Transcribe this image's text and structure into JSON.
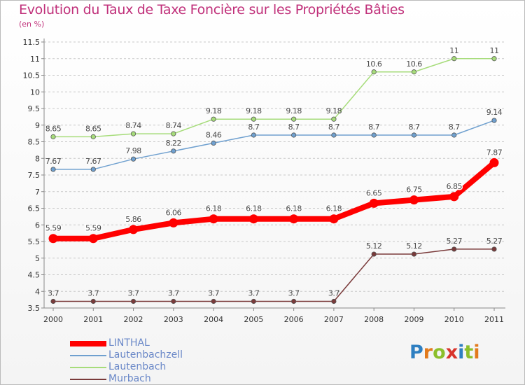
{
  "header": {
    "title": "Evolution du Taux de Taxe Foncière sur les Propriétés Bâties",
    "unit": "(en %)"
  },
  "logo": {
    "letters": [
      "P",
      "r",
      "o",
      "x",
      "i",
      "t",
      "i"
    ],
    "colors": [
      "#2e7fc1",
      "#e27a1c",
      "#8cbf2b",
      "#d8342c",
      "#2e7fc1",
      "#8cbf2b",
      "#e27a1c"
    ]
  },
  "chart_data": {
    "type": "line",
    "title": "Evolution du Taux de Taxe Foncière sur les Propriétés Bâties",
    "ylabel": "(en %)",
    "xlabel": "",
    "x": [
      "2000",
      "2001",
      "2002",
      "2003",
      "2004",
      "2005",
      "2006",
      "2007",
      "2008",
      "2009",
      "2010",
      "2011"
    ],
    "ylim": [
      3.5,
      11.5
    ],
    "yticks": [
      "3.5",
      "4",
      "4.5",
      "5",
      "5.5",
      "6",
      "6.5",
      "7",
      "7.5",
      "8",
      "8.5",
      "9",
      "9.5",
      "10",
      "10.5",
      "11",
      "11.5"
    ],
    "grid": "horizontal dashed",
    "legend_position": "bottom-left",
    "series": [
      {
        "name": "LINTHAL",
        "color": "#ff0000",
        "labelColor": "#ffffff",
        "values": [
          5.59,
          5.59,
          5.86,
          6.06,
          6.18,
          6.18,
          6.18,
          6.18,
          6.65,
          6.75,
          6.85,
          7.87
        ],
        "labels": [
          "5.59",
          "5.59",
          "5.86",
          "6.06",
          "6.18",
          "6.18",
          "6.18",
          "6.18",
          "6.65",
          "6.75",
          "6.85",
          "7.87"
        ]
      },
      {
        "name": "Lautenbachzell",
        "color": "#6fa0cf",
        "labelColor": "#4a4a4a",
        "values": [
          7.67,
          7.67,
          7.98,
          8.22,
          8.46,
          8.7,
          8.7,
          8.7,
          8.7,
          8.7,
          8.7,
          9.14
        ],
        "labels": [
          "7.67",
          "7.67",
          "7.98",
          "8.22",
          "8.46",
          "8.7",
          "8.7",
          "8.7",
          "8.7",
          "8.7",
          "8.7",
          "9.14"
        ]
      },
      {
        "name": "Lautenbach",
        "color": "#a6dc7a",
        "labelColor": "#4a4a4a",
        "values": [
          8.65,
          8.65,
          8.74,
          8.74,
          9.18,
          9.18,
          9.18,
          9.18,
          10.6,
          10.6,
          11,
          11
        ],
        "labels": [
          "8.65",
          "8.65",
          "8.74",
          "8.74",
          "9.18",
          "9.18",
          "9.18",
          "9.18",
          "10.6",
          "10.6",
          "11",
          "11"
        ]
      },
      {
        "name": "Murbach",
        "color": "#7a3a3a",
        "labelColor": "#4a4a4a",
        "values": [
          3.7,
          3.7,
          3.7,
          3.7,
          3.7,
          3.7,
          3.7,
          3.7,
          5.12,
          5.12,
          5.27,
          5.27
        ],
        "labels": [
          "3.7",
          "3.7",
          "3.7",
          "3.7",
          "3.7",
          "3.7",
          "3.7",
          "3.7",
          "5.12",
          "5.12",
          "5.27",
          "5.27"
        ]
      }
    ]
  }
}
